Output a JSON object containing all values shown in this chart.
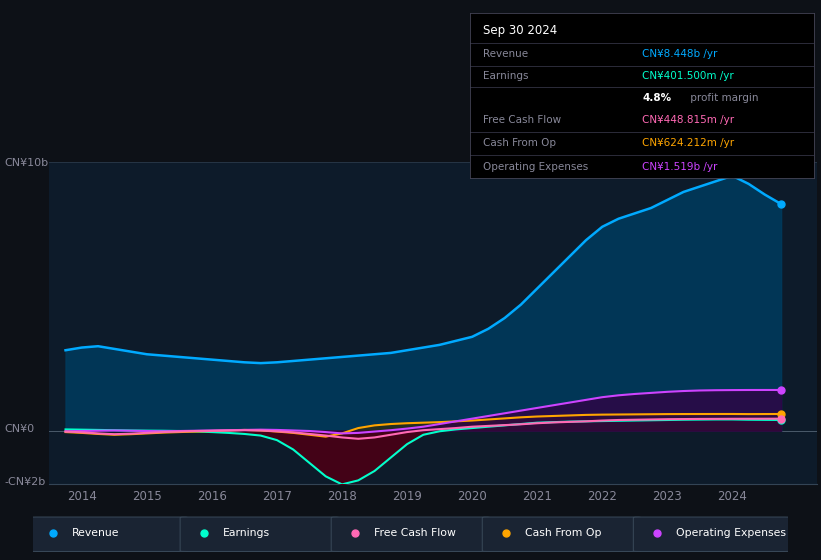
{
  "background_color": "#0d1117",
  "plot_bg_color": "#0d1b2a",
  "title_box": {
    "date": "Sep 30 2024",
    "rows": [
      {
        "label": "Revenue",
        "value": "CN¥8.448b /yr",
        "value_color": "#00aaff"
      },
      {
        "label": "Earnings",
        "value": "CN¥401.500m /yr",
        "value_color": "#00ffcc"
      },
      {
        "label": "",
        "value": "4.8% profit margin",
        "value_color": "#aaaaaa"
      },
      {
        "label": "Free Cash Flow",
        "value": "CN¥448.815m /yr",
        "value_color": "#ff69b4"
      },
      {
        "label": "Cash From Op",
        "value": "CN¥624.212m /yr",
        "value_color": "#ffa500"
      },
      {
        "label": "Operating Expenses",
        "value": "CN¥1.519b /yr",
        "value_color": "#cc44ff"
      }
    ]
  },
  "ylabel_top": "CN¥10b",
  "ylabel_mid": "CN¥0",
  "ylabel_bot": "-CN¥2b",
  "ylim": [
    -2000000000.0,
    10000000000.0
  ],
  "xlim_year": [
    2013.5,
    2025.3
  ],
  "xtick_years": [
    2014,
    2015,
    2016,
    2017,
    2018,
    2019,
    2020,
    2021,
    2022,
    2023,
    2024
  ],
  "revenue_x": [
    2013.75,
    2014.0,
    2014.25,
    2014.5,
    2014.75,
    2015.0,
    2015.25,
    2015.5,
    2015.75,
    2016.0,
    2016.25,
    2016.5,
    2016.75,
    2017.0,
    2017.25,
    2017.5,
    2017.75,
    2018.0,
    2018.25,
    2018.5,
    2018.75,
    2019.0,
    2019.25,
    2019.5,
    2019.75,
    2020.0,
    2020.25,
    2020.5,
    2020.75,
    2021.0,
    2021.25,
    2021.5,
    2021.75,
    2022.0,
    2022.25,
    2022.5,
    2022.75,
    2023.0,
    2023.25,
    2023.5,
    2023.75,
    2024.0,
    2024.25,
    2024.5,
    2024.75
  ],
  "revenue_y": [
    3000000000.0,
    3100000000.0,
    3150000000.0,
    3050000000.0,
    2950000000.0,
    2850000000.0,
    2800000000.0,
    2750000000.0,
    2700000000.0,
    2650000000.0,
    2600000000.0,
    2550000000.0,
    2520000000.0,
    2550000000.0,
    2600000000.0,
    2650000000.0,
    2700000000.0,
    2750000000.0,
    2800000000.0,
    2850000000.0,
    2900000000.0,
    3000000000.0,
    3100000000.0,
    3200000000.0,
    3350000000.0,
    3500000000.0,
    3800000000.0,
    4200000000.0,
    4700000000.0,
    5300000000.0,
    5900000000.0,
    6500000000.0,
    7100000000.0,
    7600000000.0,
    7900000000.0,
    8100000000.0,
    8300000000.0,
    8600000000.0,
    8900000000.0,
    9100000000.0,
    9300000000.0,
    9500000000.0,
    9200000000.0,
    8800000000.0,
    8448000000.0
  ],
  "earnings_x": [
    2013.75,
    2014.0,
    2014.25,
    2014.5,
    2014.75,
    2015.0,
    2015.25,
    2015.5,
    2015.75,
    2016.0,
    2016.25,
    2016.5,
    2016.75,
    2017.0,
    2017.25,
    2017.5,
    2017.75,
    2018.0,
    2018.25,
    2018.5,
    2018.75,
    2019.0,
    2019.25,
    2019.5,
    2019.75,
    2020.0,
    2020.25,
    2020.5,
    2020.75,
    2021.0,
    2021.25,
    2021.5,
    2021.75,
    2022.0,
    2022.25,
    2022.5,
    2022.75,
    2023.0,
    2023.25,
    2023.5,
    2023.75,
    2024.0,
    2024.25,
    2024.5,
    2024.75
  ],
  "earnings_y": [
    50000000.0,
    40000000.0,
    30000000.0,
    20000000.0,
    10000000.0,
    5000000.0,
    0,
    -10000000.0,
    -30000000.0,
    -50000000.0,
    -80000000.0,
    -120000000.0,
    -180000000.0,
    -350000000.0,
    -700000000.0,
    -1200000000.0,
    -1700000000.0,
    -2000000000.0,
    -1850000000.0,
    -1500000000.0,
    -1000000000.0,
    -500000000.0,
    -150000000.0,
    -20000000.0,
    50000000.0,
    100000000.0,
    150000000.0,
    200000000.0,
    250000000.0,
    300000000.0,
    320000000.0,
    340000000.0,
    350000000.0,
    360000000.0,
    370000000.0,
    380000000.0,
    390000000.0,
    400000000.0,
    410000000.0,
    415000000.0,
    420000000.0,
    420000000.0,
    410000000.0,
    405000000.0,
    401500000.0
  ],
  "fcf_x": [
    2013.75,
    2014.0,
    2014.25,
    2014.5,
    2014.75,
    2015.0,
    2015.25,
    2015.5,
    2015.75,
    2016.0,
    2016.25,
    2016.5,
    2016.75,
    2017.0,
    2017.25,
    2017.5,
    2017.75,
    2018.0,
    2018.25,
    2018.5,
    2018.75,
    2019.0,
    2019.25,
    2019.5,
    2019.75,
    2020.0,
    2020.25,
    2020.5,
    2020.75,
    2021.0,
    2021.25,
    2021.5,
    2021.75,
    2022.0,
    2022.25,
    2022.5,
    2022.75,
    2023.0,
    2023.25,
    2023.5,
    2023.75,
    2024.0,
    2024.25,
    2024.5,
    2024.75
  ],
  "fcf_y": [
    -30000000.0,
    -60000000.0,
    -100000000.0,
    -130000000.0,
    -110000000.0,
    -80000000.0,
    -50000000.0,
    -30000000.0,
    -10000000.0,
    0,
    10000000.0,
    20000000.0,
    10000000.0,
    -20000000.0,
    -60000000.0,
    -120000000.0,
    -180000000.0,
    -250000000.0,
    -300000000.0,
    -250000000.0,
    -150000000.0,
    -50000000.0,
    20000000.0,
    60000000.0,
    100000000.0,
    150000000.0,
    180000000.0,
    210000000.0,
    240000000.0,
    280000000.0,
    310000000.0,
    330000000.0,
    350000000.0,
    380000000.0,
    400000000.0,
    410000000.0,
    420000000.0,
    430000000.0,
    435000000.0,
    440000000.0,
    442000000.0,
    445000000.0,
    446000000.0,
    447000000.0,
    448800000.0
  ],
  "cfop_x": [
    2013.75,
    2014.0,
    2014.25,
    2014.5,
    2014.75,
    2015.0,
    2015.25,
    2015.5,
    2015.75,
    2016.0,
    2016.25,
    2016.5,
    2016.75,
    2017.0,
    2017.25,
    2017.5,
    2017.75,
    2018.0,
    2018.25,
    2018.5,
    2018.75,
    2019.0,
    2019.25,
    2019.5,
    2019.75,
    2020.0,
    2020.25,
    2020.5,
    2020.75,
    2021.0,
    2021.25,
    2021.5,
    2021.75,
    2022.0,
    2022.25,
    2022.5,
    2022.75,
    2023.0,
    2023.25,
    2023.5,
    2023.75,
    2024.0,
    2024.25,
    2024.5,
    2024.75
  ],
  "cfop_y": [
    -50000000.0,
    -80000000.0,
    -120000000.0,
    -150000000.0,
    -130000000.0,
    -100000000.0,
    -70000000.0,
    -50000000.0,
    -30000000.0,
    -10000000.0,
    10000000.0,
    30000000.0,
    10000000.0,
    -30000000.0,
    -80000000.0,
    -150000000.0,
    -220000000.0,
    -100000000.0,
    100000000.0,
    200000000.0,
    250000000.0,
    280000000.0,
    300000000.0,
    320000000.0,
    350000000.0,
    380000000.0,
    420000000.0,
    460000000.0,
    500000000.0,
    530000000.0,
    550000000.0,
    570000000.0,
    590000000.0,
    600000000.0,
    605000000.0,
    610000000.0,
    615000000.0,
    620000000.0,
    622000000.0,
    623000000.0,
    624000000.0,
    624200000.0,
    620000000.0,
    622000000.0,
    624200000.0
  ],
  "opex_x": [
    2013.75,
    2014.0,
    2014.25,
    2014.5,
    2014.75,
    2015.0,
    2015.25,
    2015.5,
    2015.75,
    2016.0,
    2016.25,
    2016.5,
    2016.75,
    2017.0,
    2017.25,
    2017.5,
    2017.75,
    2018.0,
    2018.25,
    2018.5,
    2018.75,
    2019.0,
    2019.25,
    2019.5,
    2019.75,
    2020.0,
    2020.25,
    2020.5,
    2020.75,
    2021.0,
    2021.25,
    2021.5,
    2021.75,
    2022.0,
    2022.25,
    2022.5,
    2022.75,
    2023.0,
    2023.25,
    2023.5,
    2023.75,
    2024.0,
    2024.25,
    2024.5,
    2024.75
  ],
  "opex_y": [
    -20000000.0,
    -10000000.0,
    0,
    10000000.0,
    0,
    -10000000.0,
    -20000000.0,
    -10000000.0,
    0,
    10000000.0,
    20000000.0,
    30000000.0,
    40000000.0,
    30000000.0,
    10000000.0,
    -10000000.0,
    -50000000.0,
    -100000000.0,
    -80000000.0,
    -30000000.0,
    20000000.0,
    80000000.0,
    150000000.0,
    250000000.0,
    350000000.0,
    450000000.0,
    550000000.0,
    650000000.0,
    750000000.0,
    850000000.0,
    950000000.0,
    1050000000.0,
    1150000000.0,
    1250000000.0,
    1320000000.0,
    1370000000.0,
    1410000000.0,
    1450000000.0,
    1480000000.0,
    1500000000.0,
    1510000000.0,
    1515000000.0,
    1518000000.0,
    1519000000.0,
    1519000000.0
  ],
  "series_colors": {
    "revenue": "#00aaff",
    "revenue_fill": "#003a5c",
    "earnings": "#00ffcc",
    "earnings_fill_pos": "#003322",
    "earnings_fill_neg": "#4a0015",
    "fcf": "#ff69b4",
    "cfop": "#ffa500",
    "cfop_fill": "#3a2800",
    "opex": "#cc44ff",
    "opex_fill": "#330044"
  },
  "legend_items": [
    {
      "label": "Revenue",
      "color": "#00aaff"
    },
    {
      "label": "Earnings",
      "color": "#00ffcc"
    },
    {
      "label": "Free Cash Flow",
      "color": "#ff69b4"
    },
    {
      "label": "Cash From Op",
      "color": "#ffa500"
    },
    {
      "label": "Operating Expenses",
      "color": "#cc44ff"
    }
  ]
}
